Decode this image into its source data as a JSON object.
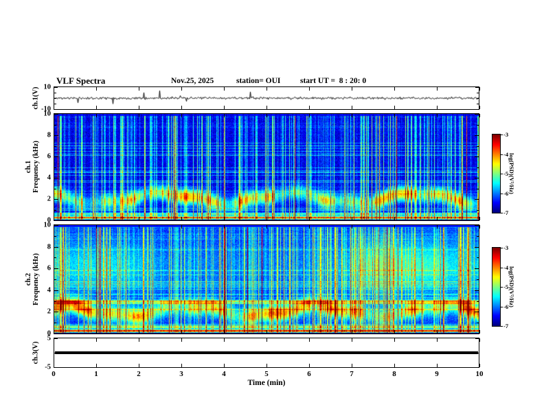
{
  "chart_data": {
    "type": "heatmap",
    "title": "VLF Spectra",
    "annotations": [
      "Nov.25, 2025",
      "station= OUI",
      "start UT =  8 : 20: 0"
    ],
    "xlabel": "Time (min)",
    "x_range": [
      0,
      10
    ],
    "x_ticks": [
      0,
      1,
      2,
      3,
      4,
      5,
      6,
      7,
      8,
      9,
      10
    ],
    "grid": false,
    "panels": [
      {
        "id": "ch1_voltage",
        "ylabel": "ch.1(V)",
        "ylim": [
          -10,
          10
        ],
        "yticks": [
          10,
          -10
        ],
        "content": "broadband noise waveform centered near 0 V with sparse impulsive spikes"
      },
      {
        "id": "ch1_spectrogram",
        "ylabel_lines": [
          "ch.1",
          "Frequency (kHz)"
        ],
        "ylim": [
          0,
          10
        ],
        "yticks": [
          0,
          2,
          4,
          6,
          8,
          10
        ],
        "content": "VLF spectrogram: dark blue background near -6.5 log PSD, dense vertical sferic streaks (green/yellow), patchy emission band near 2-2.5 kHz, thin horizontal interference lines, red/black lines below 0.5 kHz"
      },
      {
        "id": "ch2_spectrogram",
        "ylabel_lines": [
          "ch.2",
          "Frequency (kHz)"
        ],
        "ylim": [
          0,
          10
        ],
        "yticks": [
          0,
          2,
          4,
          6,
          8,
          10
        ],
        "content": "VLF spectrogram: brighter than ch.1, broad green wash 4.5-8 kHz strongest toward right, strong continuous band near 2-3 kHz, dense vertical streaks"
      },
      {
        "id": "ch3_voltage",
        "ylabel": "ch.3(V)",
        "ylim": [
          -5,
          5
        ],
        "yticks": [
          5,
          -5
        ],
        "content": "flat thick line at 0 V (no signal)"
      }
    ],
    "colorbars": [
      {
        "label": "log(PSD)(V²/Hz)",
        "ticks": [
          -3,
          -4,
          -5,
          -6,
          -7
        ],
        "colormap": "jet",
        "range": [
          -7,
          -3
        ]
      },
      {
        "label": "log(PSD)(V²/Hz)",
        "ticks": [
          -3,
          -4,
          -5,
          -6,
          -7
        ],
        "colormap": "jet",
        "range": [
          -7,
          -3
        ]
      }
    ]
  }
}
